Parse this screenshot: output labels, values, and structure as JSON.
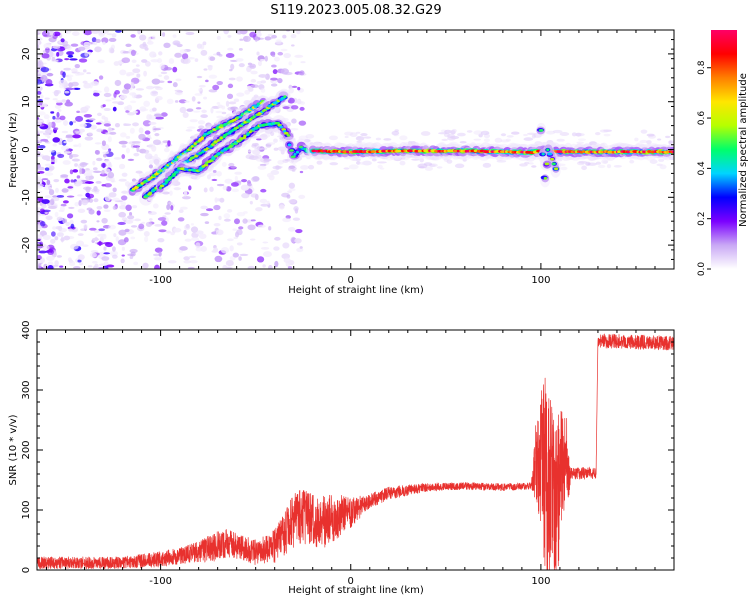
{
  "figure": {
    "title": "S119.2023.005.08.32.G29"
  },
  "chart_data": [
    {
      "type": "heatmap",
      "xlabel": "Height of straight line (km)",
      "ylabel": "Frequency (Hz)",
      "xlim": [
        -165,
        170
      ],
      "ylim": [
        -25,
        25
      ],
      "xticks": [
        -100,
        0,
        100
      ],
      "yticks": [
        -20,
        -10,
        0,
        10,
        20
      ],
      "colorbar": {
        "label": "Normalized spectral amplitude",
        "range": [
          0,
          0.95
        ],
        "ticks": [
          0.0,
          0.2,
          0.4,
          0.6,
          0.8
        ],
        "colors": [
          "#ffffff",
          "#c9a8f5",
          "#7b00ff",
          "#0000ff",
          "#00d5ff",
          "#00ff6a",
          "#b6ff00",
          "#ffe600",
          "#ff7f00",
          "#ff0000",
          "#ff0066"
        ]
      },
      "ridges": [
        {
          "points": [
            [
              -115,
              -8.5
            ],
            [
              -105,
              -6
            ],
            [
              -95,
              -3
            ],
            [
              -85,
              0
            ],
            [
              -75,
              3.5
            ],
            [
              -62,
              6
            ],
            [
              -50,
              9
            ],
            [
              -46,
              10
            ]
          ],
          "amp": 0.55
        },
        {
          "points": [
            [
              -108,
              -10
            ],
            [
              -98,
              -6.5
            ],
            [
              -88,
              -3
            ],
            [
              -78,
              -0.5
            ],
            [
              -66,
              3
            ],
            [
              -56,
              5.5
            ],
            [
              -46,
              8
            ],
            [
              -35,
              11
            ]
          ],
          "amp": 0.5
        },
        {
          "points": [
            [
              -100,
              -8
            ],
            [
              -90,
              -4
            ],
            [
              -80,
              -4.5
            ],
            [
              -70,
              -1
            ],
            [
              -58,
              2
            ],
            [
              -48,
              5
            ],
            [
              -38,
              5.5
            ],
            [
              -33,
              3
            ]
          ],
          "amp": 0.5
        },
        {
          "points": [
            [
              -32,
              1
            ],
            [
              -30,
              -1.5
            ],
            [
              -26,
              0.5
            ],
            [
              -22,
              -0.5
            ]
          ],
          "amp": 0.45
        },
        {
          "points": [
            [
              -20,
              -0.3
            ],
            [
              0,
              -0.5
            ],
            [
              25,
              -0.3
            ],
            [
              60,
              -0.3
            ],
            [
              95,
              -0.6
            ],
            [
              100,
              -0.3
            ],
            [
              105,
              -0.3
            ],
            [
              110,
              -0.5
            ],
            [
              170,
              -0.5
            ]
          ],
          "amp": 0.85
        },
        {
          "points": [
            [
              100,
              4
            ],
            [
              102,
              -6
            ],
            [
              104,
              0
            ],
            [
              106,
              -2
            ],
            [
              108,
              -4
            ]
          ],
          "amp": 0.5
        }
      ]
    },
    {
      "type": "line",
      "xlabel": "Height of straight line (km)",
      "ylabel": "SNR (10 * v/v)",
      "xlim": [
        -165,
        170
      ],
      "ylim": [
        0,
        400
      ],
      "xticks": [
        -100,
        0,
        100
      ],
      "yticks": [
        0,
        100,
        200,
        300,
        400
      ],
      "series": [
        {
          "color": "#e8312e",
          "envelope": [
            [
              -165,
              12
            ],
            [
              -120,
              12
            ],
            [
              -100,
              18
            ],
            [
              -80,
              30
            ],
            [
              -65,
              45
            ],
            [
              -50,
              30
            ],
            [
              -40,
              40
            ],
            [
              -28,
              90
            ],
            [
              -15,
              80
            ],
            [
              -5,
              90
            ],
            [
              0,
              95
            ],
            [
              10,
              115
            ],
            [
              20,
              128
            ],
            [
              40,
              138
            ],
            [
              60,
              140
            ],
            [
              80,
              138
            ],
            [
              95,
              140
            ],
            [
              96,
              160
            ],
            [
              100,
              130
            ],
            [
              103,
              90
            ],
            [
              108,
              60
            ],
            [
              113,
              160
            ],
            [
              129,
              162
            ],
            [
              130,
              382
            ],
            [
              170,
              378
            ]
          ],
          "noise": [
            [
              -165,
              10
            ],
            [
              -120,
              10
            ],
            [
              -85,
              15
            ],
            [
              -70,
              25
            ],
            [
              -55,
              20
            ],
            [
              -42,
              25
            ],
            [
              -30,
              45
            ],
            [
              -15,
              45
            ],
            [
              -5,
              35
            ],
            [
              0,
              25
            ],
            [
              10,
              12
            ],
            [
              50,
              6
            ],
            [
              95,
              6
            ],
            [
              97,
              60
            ],
            [
              102,
              160
            ],
            [
              108,
              150
            ],
            [
              114,
              60
            ],
            [
              116,
              10
            ],
            [
              129,
              10
            ],
            [
              130,
              12
            ],
            [
              170,
              12
            ]
          ]
        }
      ]
    }
  ]
}
